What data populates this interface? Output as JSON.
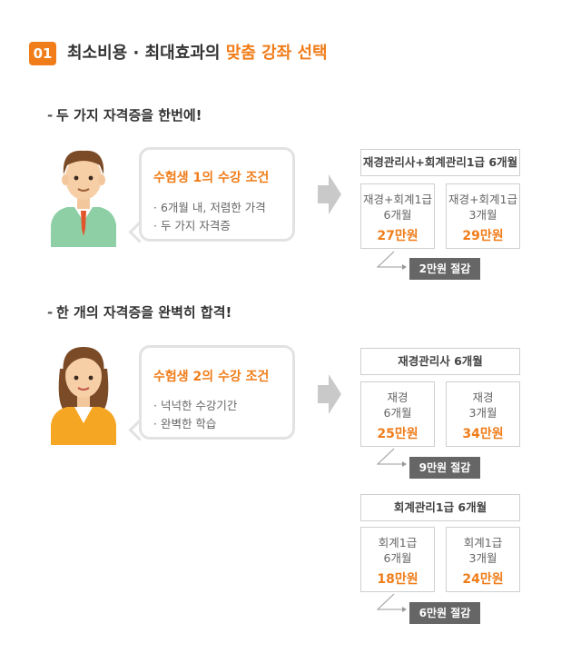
{
  "header": {
    "badge": "01",
    "title_prefix": "최소비용 · 최대효과의 ",
    "title_highlight": "맞춤 강좌 선택"
  },
  "sections": [
    {
      "heading": "두 가지 자격증을 한번에!",
      "bubble": {
        "title": "수험생 1의 수강 조건",
        "items": [
          "· 6개월 내, 저렴한 가격",
          "· 두 가지 자격증"
        ]
      },
      "courses": [
        {
          "head": "재경관리사+회계관리1급 6개월",
          "options": [
            {
              "name": "재경+회계1급",
              "duration": "6개월",
              "price": "27만원"
            },
            {
              "name": "재경+회계1급",
              "duration": "3개월",
              "price": "29만원"
            }
          ],
          "saving": "2만원 절감"
        }
      ]
    },
    {
      "heading": "한 개의 자격증을 완벽히 합격!",
      "bubble": {
        "title": "수험생 2의 수강 조건",
        "items": [
          "· 넉넉한 수강기간",
          "· 완벽한 학습"
        ]
      },
      "courses": [
        {
          "head": "재경관리사 6개월",
          "options": [
            {
              "name": "재경",
              "duration": "6개월",
              "price": "25만원"
            },
            {
              "name": "재경",
              "duration": "3개월",
              "price": "34만원"
            }
          ],
          "saving": "9만원 절감"
        },
        {
          "head": "회계관리1급 6개월",
          "options": [
            {
              "name": "회계1급",
              "duration": "6개월",
              "price": "18만원"
            },
            {
              "name": "회계1급",
              "duration": "3개월",
              "price": "24만원"
            }
          ],
          "saving": "6만원 절감"
        }
      ]
    }
  ],
  "colors": {
    "accent": "#f07d1a",
    "tag": "#666666",
    "border": "#cfcfcf"
  },
  "icons": {
    "person_1": "man-avatar-icon",
    "person_2": "woman-avatar-icon",
    "arrow": "right-arrow-icon"
  }
}
